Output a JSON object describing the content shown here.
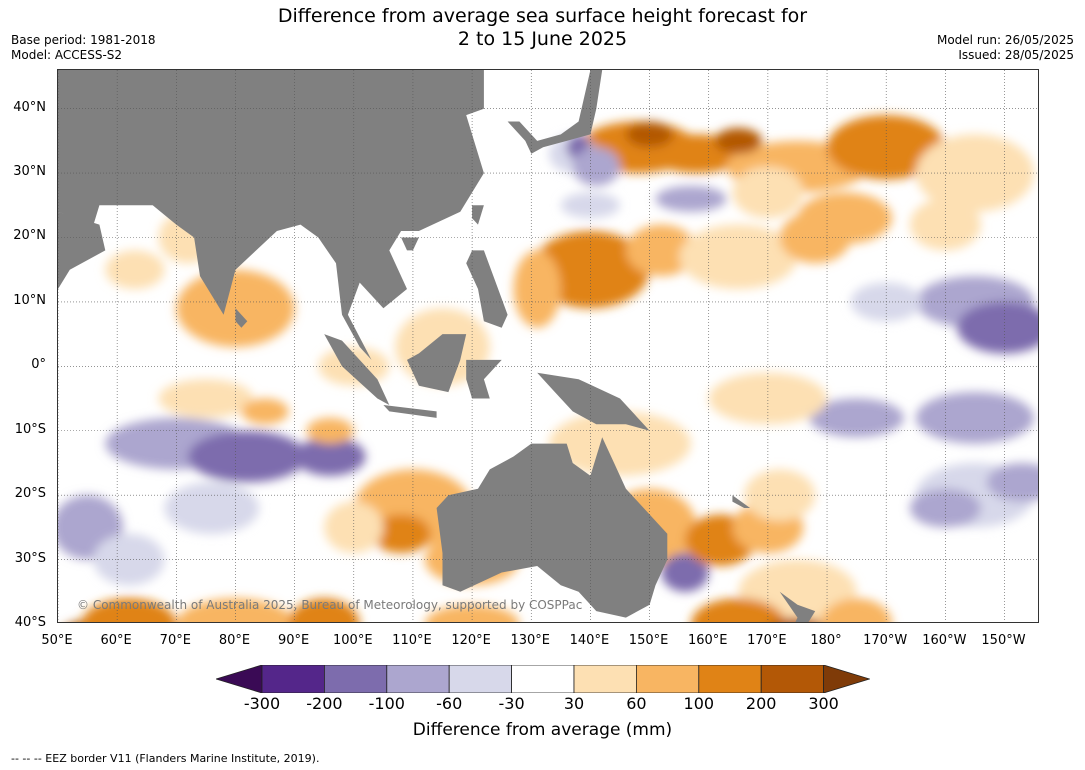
{
  "title": {
    "line1": "Difference from average sea surface height forecast for",
    "line2": "2 to 15 June 2025"
  },
  "meta_left": {
    "base_period": "Base period: 1981-2018",
    "model": "Model: ACCESS-S2"
  },
  "meta_right": {
    "model_run": "Model run: 26/05/2025",
    "issued": "Issued: 28/05/2025"
  },
  "map": {
    "lat_labels": [
      "40°N",
      "30°N",
      "20°N",
      "10°N",
      "0°",
      "10°S",
      "20°S",
      "30°S",
      "40°S"
    ],
    "lon_labels": [
      "50°E",
      "60°E",
      "70°E",
      "80°E",
      "90°E",
      "100°E",
      "110°E",
      "120°E",
      "130°E",
      "140°E",
      "150°E",
      "160°E",
      "170°E",
      "180°",
      "170°W",
      "160°W",
      "150°W"
    ],
    "lat_range": [
      46,
      -40
    ],
    "lon_range": [
      50,
      216
    ],
    "land_color": "#808080",
    "copyright": "© Commonwealth of Australia 2025, Bureau of Meteorology, supported by COSPPac"
  },
  "legend": {
    "tick_labels": [
      "-300",
      "-200",
      "-100",
      "-60",
      "-30",
      "30",
      "60",
      "100",
      "200",
      "300"
    ],
    "colors": [
      "#3a0a55",
      "#54268a",
      "#7d6cad",
      "#aca6cf",
      "#d7d8ea",
      "#ffffff",
      "#fde0b3",
      "#f8b562",
      "#e08316",
      "#b35806",
      "#7f3b08"
    ],
    "title": "Difference from average (mm)"
  },
  "footer": {
    "eez_note": "--  --  -- EEZ border V11 (Flanders Marine Institute, 2019)."
  }
}
